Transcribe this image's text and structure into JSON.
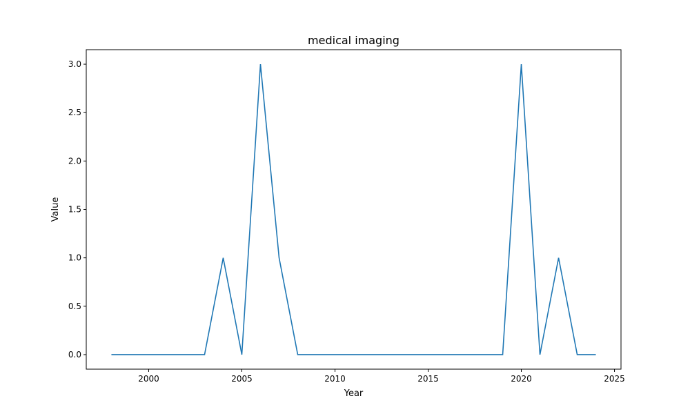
{
  "chart_data": {
    "type": "line",
    "title": "medical imaging",
    "xlabel": "Year",
    "ylabel": "Value",
    "xlim": [
      1996.65,
      2025.35
    ],
    "ylim": [
      -0.15,
      3.15
    ],
    "xticks": [
      2000,
      2005,
      2010,
      2015,
      2020,
      2025
    ],
    "yticks": [
      0.0,
      0.5,
      1.0,
      1.5,
      2.0,
      2.5,
      3.0
    ],
    "xtick_labels": [
      "2000",
      "2005",
      "2010",
      "2015",
      "2020",
      "2025"
    ],
    "ytick_labels": [
      "0.0",
      "0.5",
      "1.0",
      "1.5",
      "2.0",
      "2.5",
      "3.0"
    ],
    "grid": false,
    "series": [
      {
        "color": "#1f77b4",
        "x": [
          1998,
          1999,
          2000,
          2001,
          2002,
          2003,
          2004,
          2005,
          2006,
          2007,
          2008,
          2009,
          2010,
          2011,
          2012,
          2013,
          2014,
          2015,
          2016,
          2017,
          2018,
          2019,
          2020,
          2021,
          2022,
          2023,
          2024
        ],
        "y": [
          0,
          0,
          0,
          0,
          0,
          0,
          1,
          0,
          3,
          1,
          0,
          0,
          0,
          0,
          0,
          0,
          0,
          0,
          0,
          0,
          0,
          0,
          3,
          0,
          1,
          0,
          0
        ]
      }
    ]
  }
}
